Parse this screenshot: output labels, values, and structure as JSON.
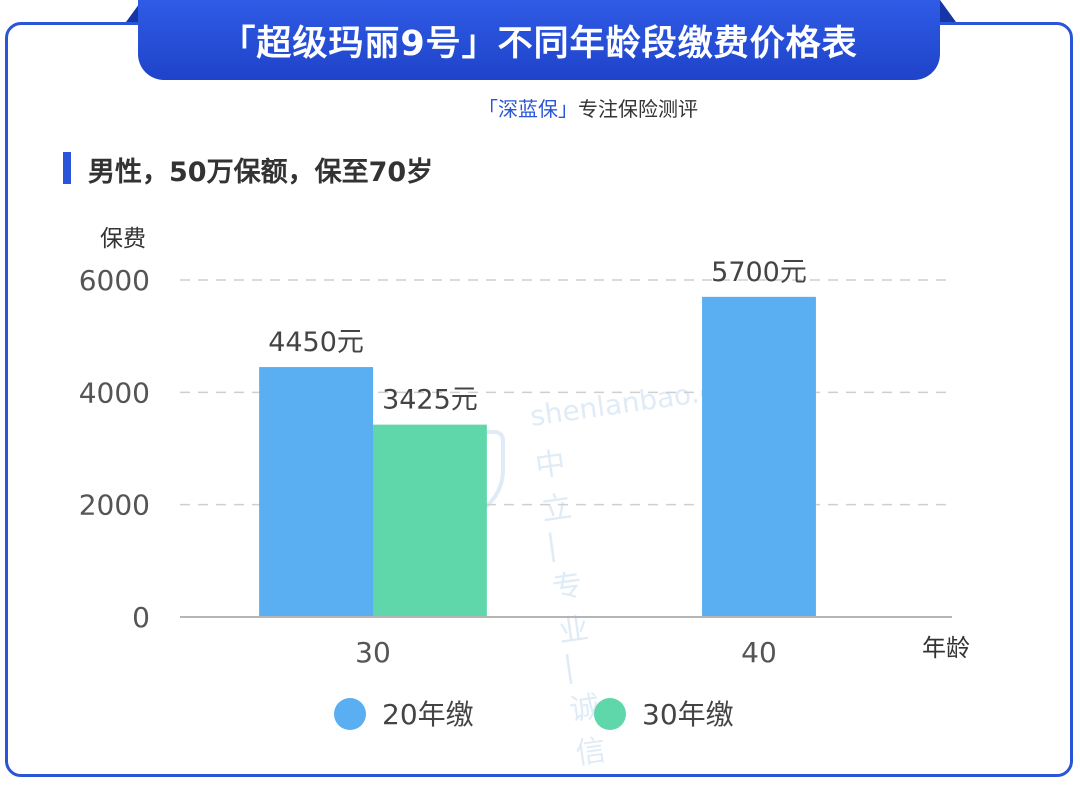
{
  "header": {
    "title": "「超级玛丽9号」不同年龄段缴费价格表",
    "brand_name": "「深蓝保」",
    "brand_slogan": "专注保险测评"
  },
  "section": {
    "title": "男性，50万保额，保至70岁"
  },
  "watermark": {
    "logo_text": "深蓝保",
    "url": "shenlanbao.com",
    "tagline": "中立 | 专业 | 诚信"
  },
  "colors": {
    "accent": "#2a55d8",
    "series_20": "#5aaef2",
    "series_30": "#5fd7aa"
  },
  "chart_data": {
    "type": "bar",
    "ylabel": "保费",
    "xlabel": "年龄",
    "categories": [
      "30",
      "40"
    ],
    "ylim": [
      0,
      6000
    ],
    "yticks": [
      0,
      2000,
      4000,
      6000
    ],
    "grid": true,
    "legend": "bottom",
    "series": [
      {
        "name": "20年缴",
        "values": [
          4450,
          5700
        ],
        "labels": [
          "4450元",
          "5700元"
        ],
        "color": "#5aaef2"
      },
      {
        "name": "30年缴",
        "values": [
          3425,
          null
        ],
        "labels": [
          "3425元",
          null
        ],
        "color": "#5fd7aa"
      }
    ]
  }
}
